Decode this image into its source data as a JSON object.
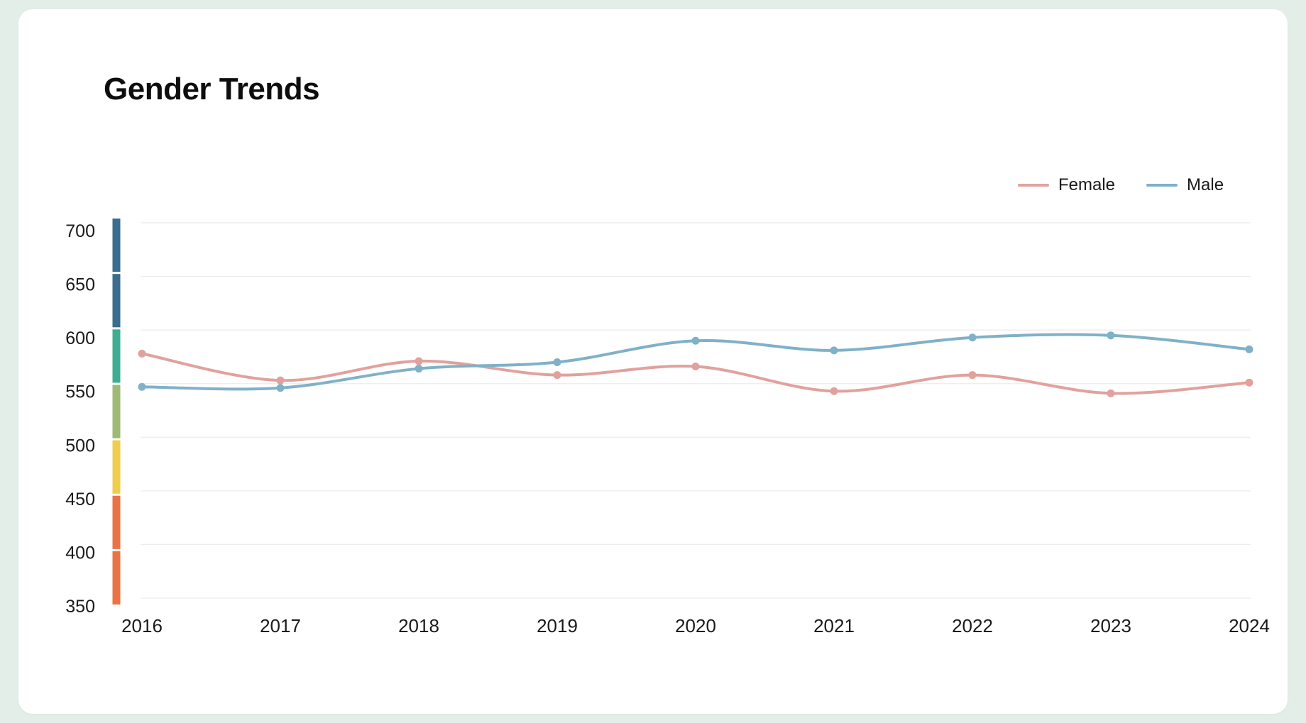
{
  "page": {
    "background": "#e3eee9",
    "card_background": "#ffffff"
  },
  "header": {
    "title": "Gender Trends"
  },
  "legend": {
    "items": [
      {
        "label": "Female",
        "color": "#e2a19c"
      },
      {
        "label": "Male",
        "color": "#7fb1c8"
      }
    ]
  },
  "chart_data": {
    "type": "line",
    "title": "Gender Trends",
    "smooth": true,
    "grid": true,
    "legend_position": "top-right",
    "categories": [
      "2016",
      "2017",
      "2018",
      "2019",
      "2020",
      "2021",
      "2022",
      "2023",
      "2024"
    ],
    "series": [
      {
        "name": "Female",
        "color": "#e2a19c",
        "values": [
          578,
          553,
          571,
          558,
          566,
          543,
          558,
          541,
          551
        ]
      },
      {
        "name": "Male",
        "color": "#7fb1c8",
        "values": [
          547,
          546,
          564,
          570,
          590,
          581,
          593,
          595,
          582
        ]
      }
    ],
    "xlabel": "",
    "ylabel": "",
    "ylim": [
      350,
      700
    ],
    "y_ticks": [
      350,
      400,
      450,
      500,
      550,
      600,
      650,
      700
    ],
    "gridline_color": "#ececec",
    "axis_label_color": "#1a1a1a",
    "colorbar_segments": [
      {
        "range": [
          650,
          700
        ],
        "color": "#3a6d8e"
      },
      {
        "range": [
          600,
          650
        ],
        "color": "#3a6d8e"
      },
      {
        "range": [
          550,
          600
        ],
        "color": "#3fad92"
      },
      {
        "range": [
          500,
          550
        ],
        "color": "#9fba76"
      },
      {
        "range": [
          450,
          500
        ],
        "color": "#f0cd4d"
      },
      {
        "range": [
          400,
          450
        ],
        "color": "#ec7345"
      },
      {
        "range": [
          350,
          400
        ],
        "color": "#ec7345"
      }
    ]
  }
}
